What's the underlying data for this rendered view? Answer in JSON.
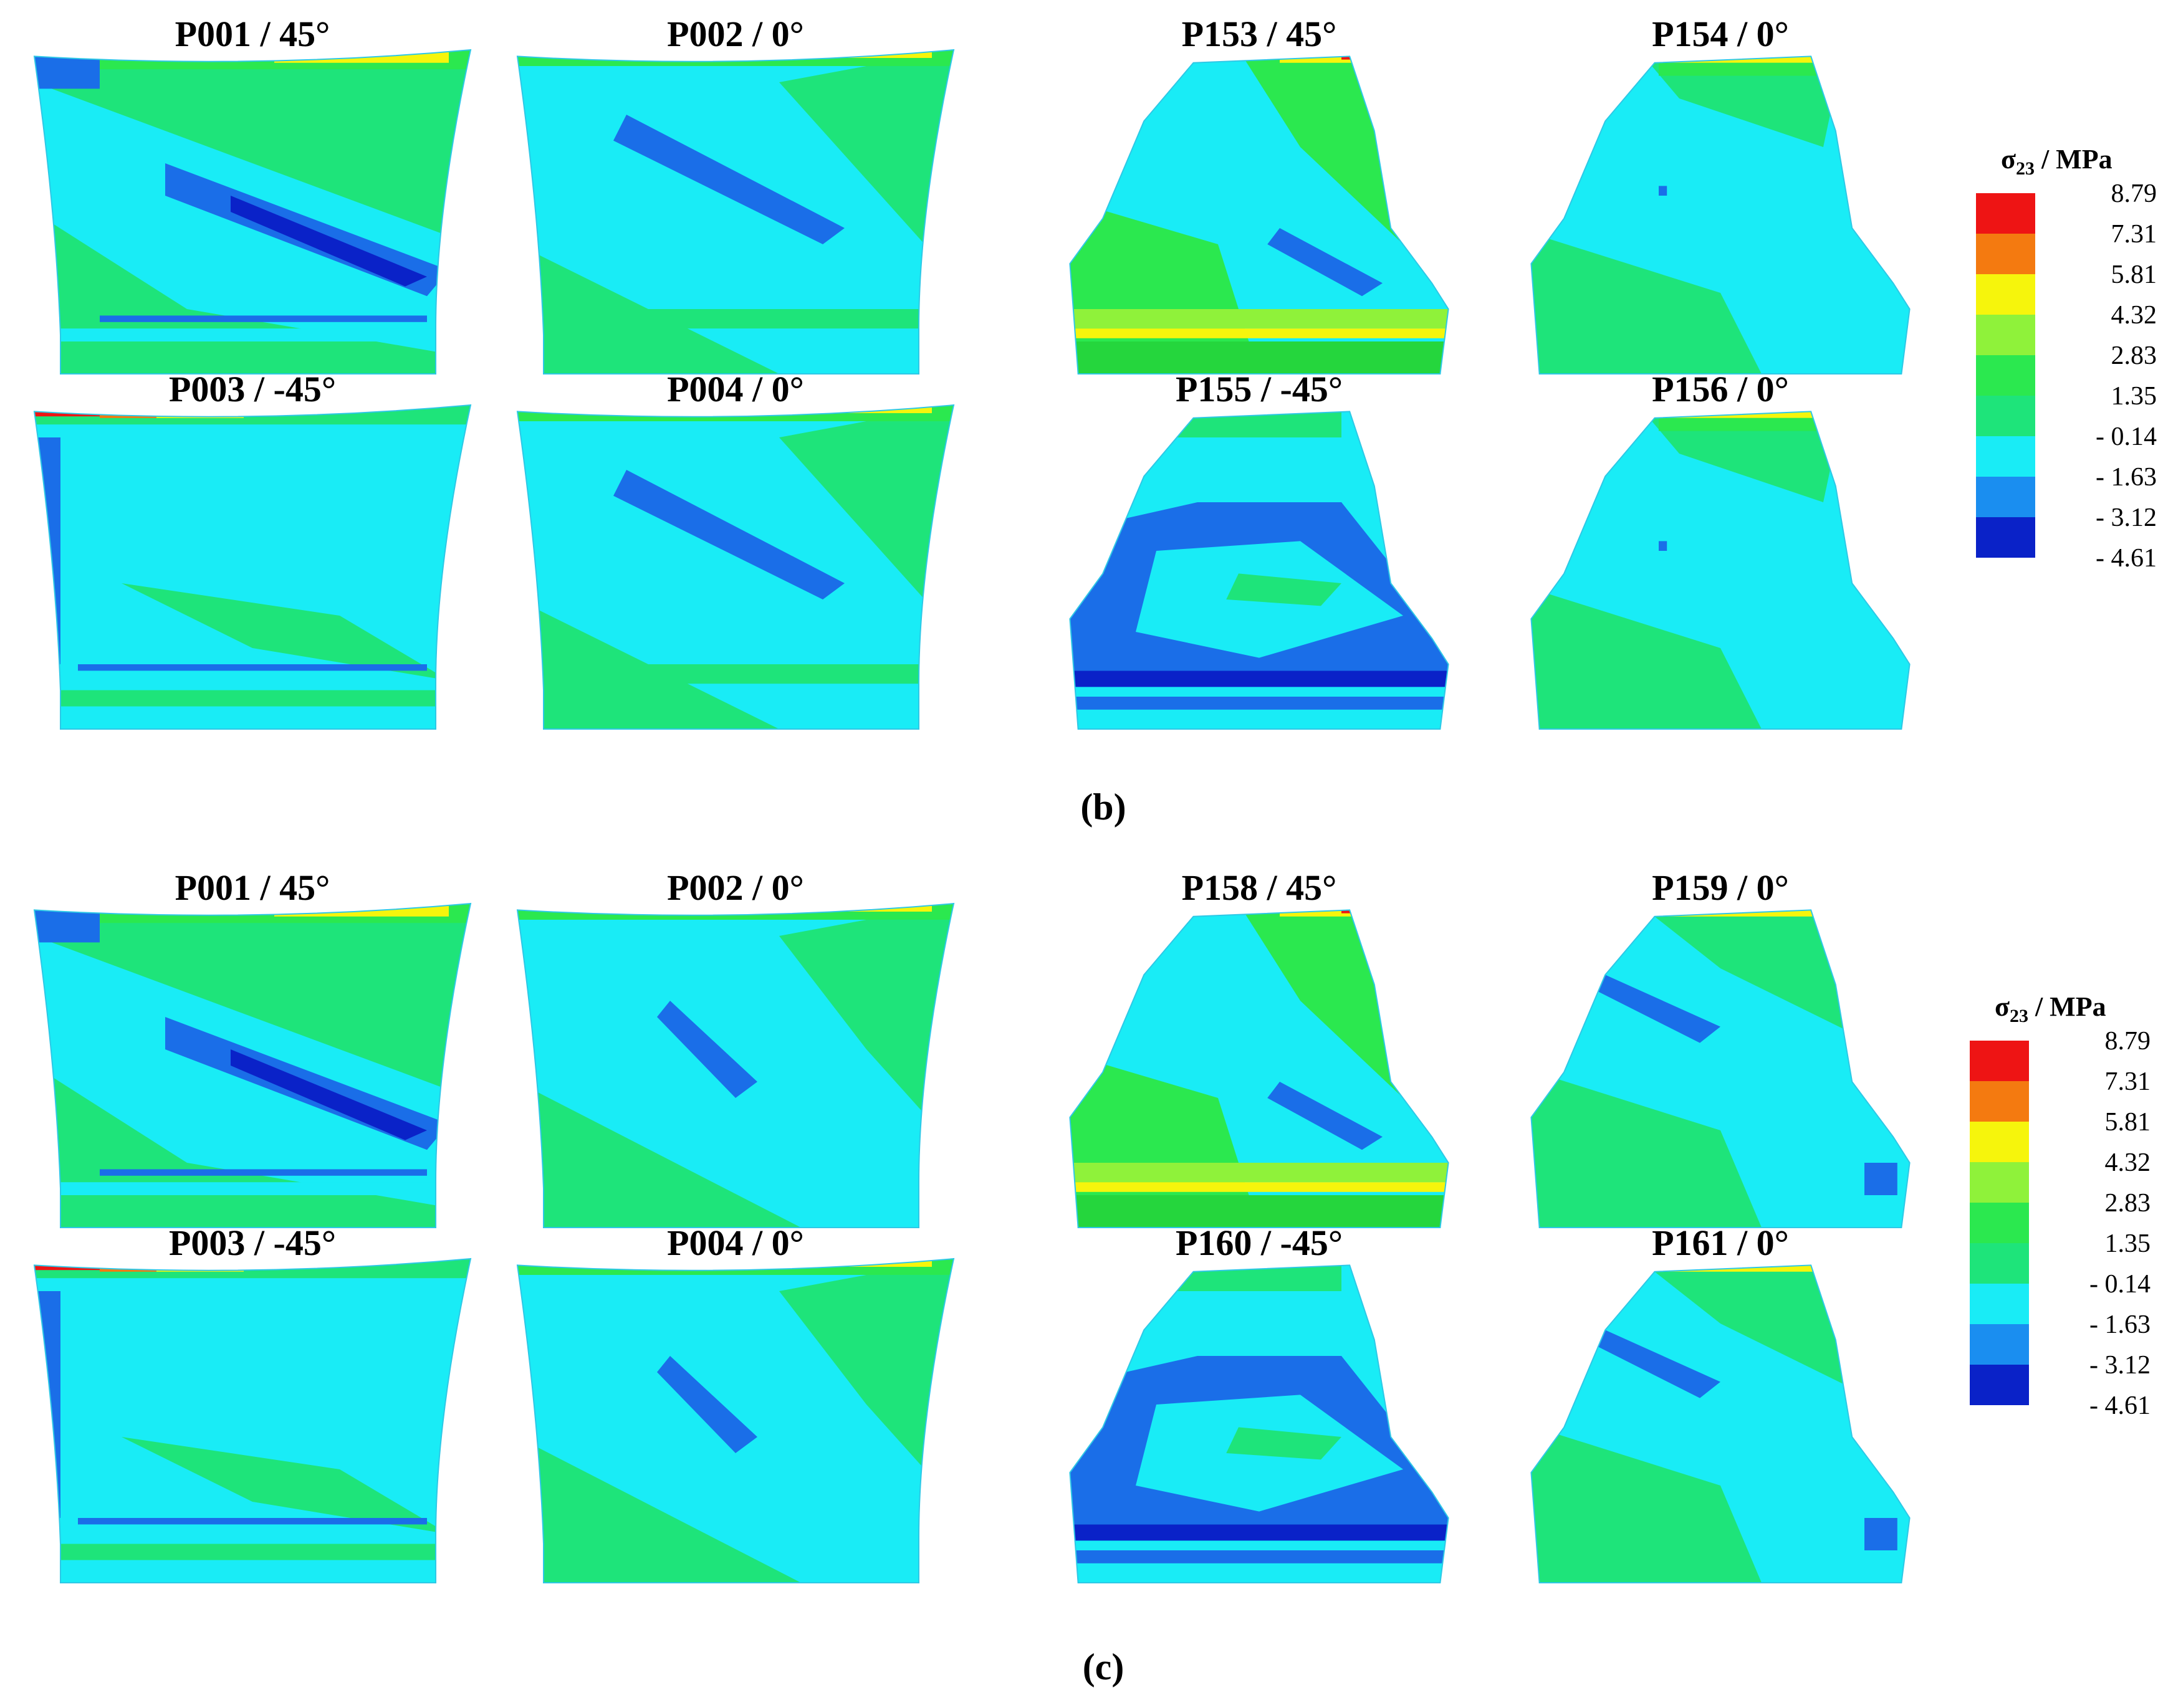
{
  "colors": {
    "base_cyan": "#19ecf6",
    "green_bg": "#1ee47a",
    "green_mid": "#2be84f",
    "green_dark": "#25d63d",
    "blue": "#1a6ee8",
    "navy": "#0a22c8",
    "lime": "#8ff23a",
    "yellow": "#f6f50c",
    "orange": "#f47a10",
    "red": "#ee1414",
    "outline": "#2ec8e6"
  },
  "legend": {
    "title_main": "σ",
    "title_sub": "23",
    "title_unit": " / MPa",
    "colors": [
      "#ee1414",
      "#f47a10",
      "#f6f50c",
      "#8ff23a",
      "#2be84f",
      "#1ee47a",
      "#19ecf6",
      "#1a8ef0",
      "#0a22c8"
    ],
    "labels": [
      "8.79",
      "7.31",
      "5.81",
      "4.32",
      "2.83",
      "1.35",
      "- 0.14",
      "- 1.63",
      "- 3.12",
      "- 4.61"
    ]
  },
  "panels": [
    {
      "caption": "(b)",
      "plies": [
        {
          "title": "P001 / 45°",
          "shape": "wide",
          "pattern": "a"
        },
        {
          "title": "P002 / 0°",
          "shape": "wide",
          "pattern": "b"
        },
        {
          "title": "P153 / 45°",
          "shape": "narrow",
          "pattern": "c"
        },
        {
          "title": "P154 / 0°",
          "shape": "narrow",
          "pattern": "d"
        },
        {
          "title": "P003 / -45°",
          "shape": "wide",
          "pattern": "e"
        },
        {
          "title": "P004 / 0°",
          "shape": "wide",
          "pattern": "b"
        },
        {
          "title": "P155 / -45°",
          "shape": "narrow",
          "pattern": "f"
        },
        {
          "title": "P156 / 0°",
          "shape": "narrow",
          "pattern": "d"
        }
      ]
    },
    {
      "caption": "(c)",
      "plies": [
        {
          "title": "P001 / 45°",
          "shape": "wide",
          "pattern": "a"
        },
        {
          "title": "P002 / 0°",
          "shape": "wide",
          "pattern": "g"
        },
        {
          "title": "P158 / 45°",
          "shape": "narrow",
          "pattern": "c"
        },
        {
          "title": "P159 / 0°",
          "shape": "narrow",
          "pattern": "h"
        },
        {
          "title": "P003 / -45°",
          "shape": "wide",
          "pattern": "e"
        },
        {
          "title": "P004 / 0°",
          "shape": "wide",
          "pattern": "g"
        },
        {
          "title": "P160 / -45°",
          "shape": "narrow",
          "pattern": "f"
        },
        {
          "title": "P161 / 0°",
          "shape": "narrow",
          "pattern": "h"
        }
      ]
    }
  ]
}
